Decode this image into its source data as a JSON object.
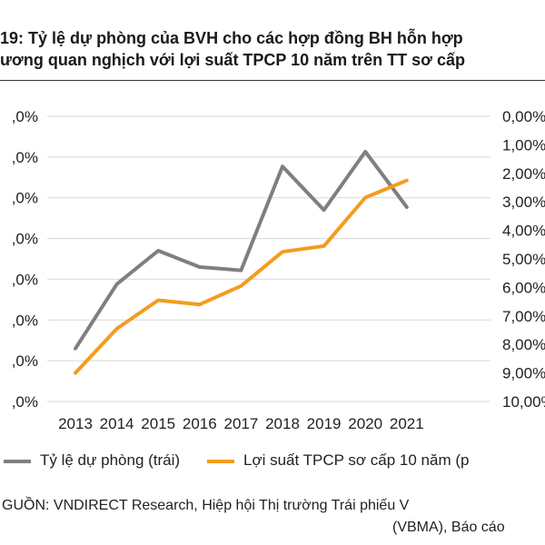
{
  "title": {
    "line1": "19: Tỷ lệ dự phòng của BVH cho các hợp đồng BH hỗn hợp",
    "line2": "ương quan nghịch với lợi suất TPCP 10 năm trên TT sơ cấp"
  },
  "chart_data": {
    "type": "line",
    "categories": [
      "2013",
      "2014",
      "2015",
      "2016",
      "2017",
      "2018",
      "2019",
      "2020",
      "2021"
    ],
    "left_axis": {
      "tick_labels": [
        ",0%",
        ",0%",
        ",0%",
        ",0%",
        ",0%",
        ",0%",
        ",0%",
        ",0%"
      ],
      "ylim": [
        0,
        7
      ]
    },
    "right_axis": {
      "tick_labels": [
        "0,00%",
        "1,00%",
        "2,00%",
        "3,00%",
        "4,00%",
        "5,00%",
        "6,00%",
        "7,00%",
        "8,00%",
        "9,00%",
        "10,00%"
      ],
      "ylim": [
        0,
        10
      ],
      "inverted": true
    },
    "series": [
      {
        "name": "Tỷ lệ dự phòng (trái)",
        "axis": "left",
        "color": "#7f7f7f",
        "values": [
          1.3,
          2.88,
          3.7,
          3.3,
          3.22,
          5.77,
          4.7,
          6.13,
          4.77
        ]
      },
      {
        "name": "Lợi suất TPCP sơ cấp 10 năm (p",
        "axis": "right",
        "color": "#f39c1f",
        "values": [
          9.0,
          7.45,
          6.45,
          6.6,
          5.95,
          4.75,
          4.55,
          2.85,
          2.25
        ]
      }
    ],
    "grid": true,
    "legend_position": "bottom"
  },
  "source": {
    "line1": "GUỒN: VNDIRECT Research, Hiệp hội Thị trường Trái phiếu V",
    "line2": "(VBMA), Báo cáo"
  }
}
